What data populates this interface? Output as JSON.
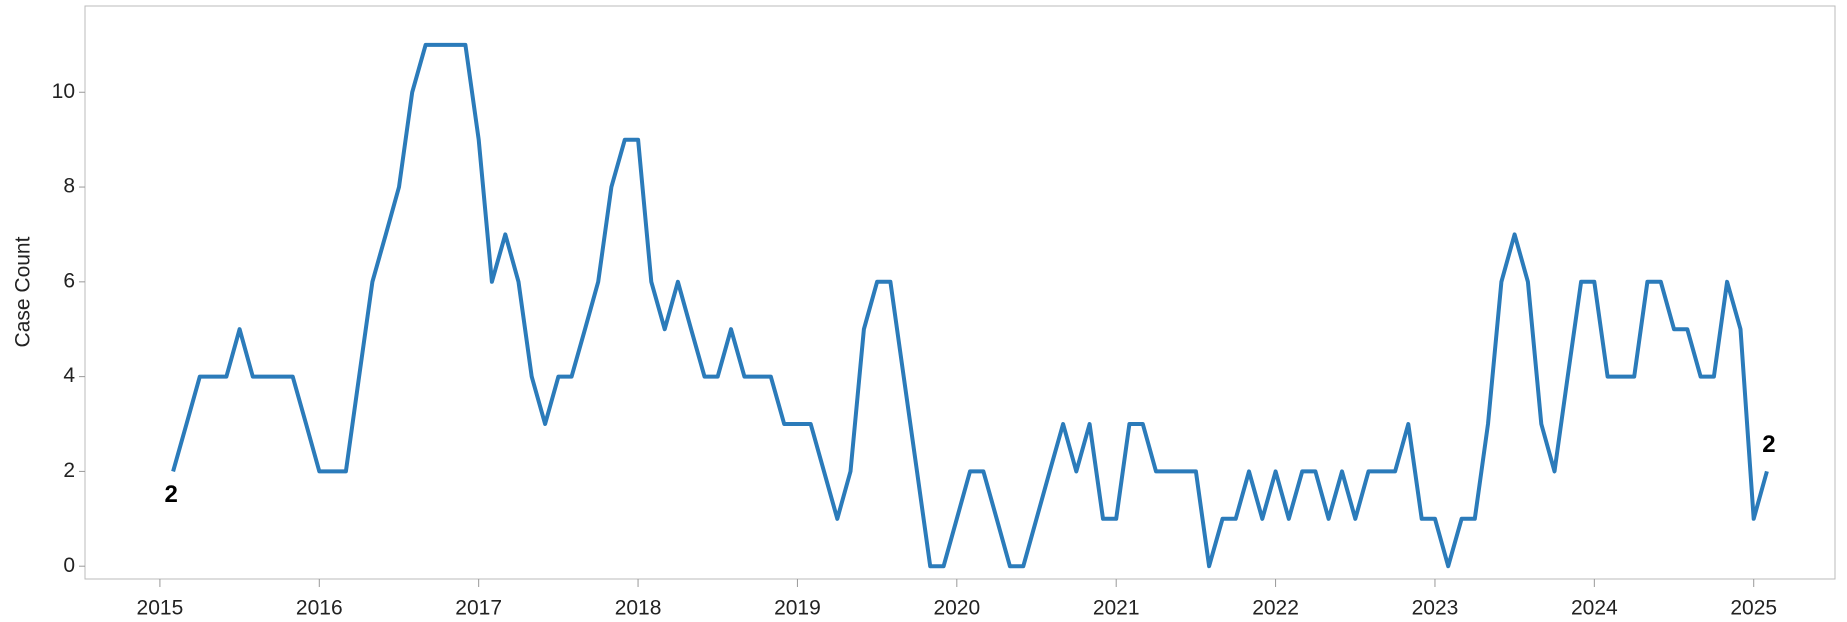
{
  "chart_data": {
    "type": "line",
    "y_label": "Case Count",
    "color": "#2b7bba",
    "x": [
      2015.083,
      2015.167,
      2015.25,
      2015.333,
      2015.417,
      2015.5,
      2015.583,
      2015.667,
      2015.75,
      2015.833,
      2015.917,
      2016,
      2016.083,
      2016.167,
      2016.25,
      2016.333,
      2016.417,
      2016.5,
      2016.583,
      2016.667,
      2016.75,
      2016.833,
      2016.917,
      2017,
      2017.083,
      2017.167,
      2017.25,
      2017.333,
      2017.417,
      2017.5,
      2017.583,
      2017.667,
      2017.75,
      2017.833,
      2017.917,
      2018,
      2018.083,
      2018.167,
      2018.25,
      2018.333,
      2018.417,
      2018.5,
      2018.583,
      2018.667,
      2018.75,
      2018.833,
      2018.917,
      2019,
      2019.083,
      2019.167,
      2019.25,
      2019.333,
      2019.417,
      2019.5,
      2019.583,
      2019.667,
      2019.75,
      2019.833,
      2019.917,
      2020,
      2020.083,
      2020.167,
      2020.25,
      2020.333,
      2020.417,
      2020.5,
      2020.583,
      2020.667,
      2020.75,
      2020.833,
      2020.917,
      2021,
      2021.083,
      2021.167,
      2021.25,
      2021.333,
      2021.417,
      2021.5,
      2021.583,
      2021.667,
      2021.75,
      2021.833,
      2021.917,
      2022,
      2022.083,
      2022.167,
      2022.25,
      2022.333,
      2022.417,
      2022.5,
      2022.583,
      2022.667,
      2022.75,
      2022.833,
      2022.917,
      2023,
      2023.083,
      2023.167,
      2023.25,
      2023.333,
      2023.417,
      2023.5,
      2023.583,
      2023.667,
      2023.75,
      2023.833,
      2023.917,
      2024,
      2024.083,
      2024.167,
      2024.25,
      2024.333,
      2024.417,
      2024.5,
      2024.583,
      2024.667,
      2024.75,
      2024.833,
      2024.917,
      2025,
      2025.083
    ],
    "values": [
      2,
      3,
      4,
      4,
      4,
      5,
      4,
      4,
      4,
      4,
      3,
      2,
      2,
      2,
      4,
      6,
      7,
      8,
      10,
      11,
      11,
      11,
      11,
      9,
      6,
      7,
      6,
      4,
      3,
      4,
      4,
      5,
      6,
      8,
      9,
      9,
      6,
      5,
      6,
      5,
      4,
      4,
      5,
      4,
      4,
      4,
      3,
      3,
      3,
      2,
      1,
      2,
      5,
      6,
      6,
      4,
      2,
      0,
      0,
      1,
      2,
      2,
      1,
      0,
      0,
      1,
      2,
      3,
      2,
      3,
      1,
      1,
      3,
      3,
      2,
      2,
      2,
      2,
      0,
      1,
      1,
      2,
      1,
      2,
      1,
      2,
      2,
      1,
      2,
      1,
      2,
      2,
      2,
      3,
      1,
      1,
      0,
      1,
      1,
      3,
      6,
      7,
      6,
      3,
      2,
      4,
      6,
      6,
      4,
      4,
      4,
      6,
      6,
      5,
      5,
      4,
      4,
      6,
      5,
      1,
      2
    ],
    "label_first_last": true,
    "xlim": [
      2014.53,
      2025.51
    ],
    "xticks": [
      2015,
      2016,
      2017,
      2018,
      2019,
      2020,
      2021,
      2022,
      2023,
      2024,
      2025
    ],
    "ylim": [
      -0.27,
      11.82
    ],
    "yticks": [
      0,
      2,
      4,
      6,
      8,
      10
    ]
  }
}
